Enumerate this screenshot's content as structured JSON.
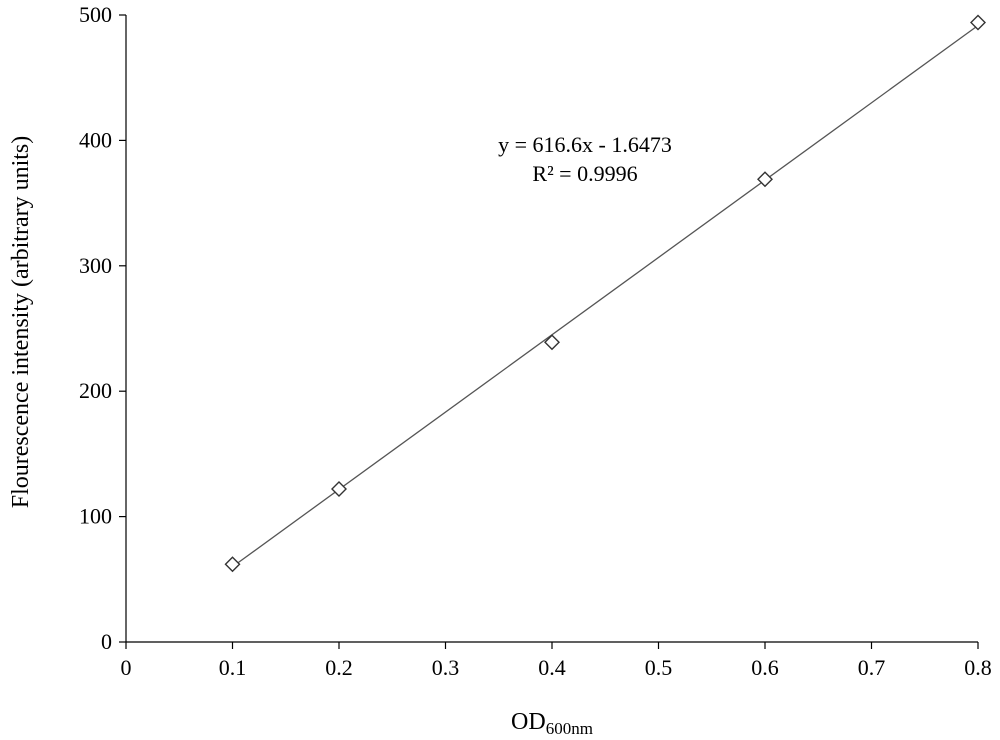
{
  "chart_data": {
    "type": "scatter",
    "xlabel_main": "OD",
    "xlabel_sub": "600nm",
    "ylabel": "Flourescence intensity (arbitrary units)",
    "xlim": [
      0,
      0.8
    ],
    "ylim": [
      0,
      500
    ],
    "x_ticks": [
      0,
      0.1,
      0.2,
      0.3,
      0.4,
      0.5,
      0.6,
      0.7,
      0.8
    ],
    "x_tick_labels": [
      "0",
      "0.1",
      "0.2",
      "0.3",
      "0.4",
      "0.5",
      "0.6",
      "0.7",
      "0.8"
    ],
    "y_ticks": [
      0,
      100,
      200,
      300,
      400,
      500
    ],
    "y_tick_labels": [
      "0",
      "100",
      "200",
      "300",
      "400",
      "500"
    ],
    "grid": false,
    "legend": "none",
    "marker": "open-diamond",
    "series": [
      {
        "x": [
          0.1,
          0.2,
          0.4,
          0.6,
          0.8
        ],
        "y": [
          62,
          122,
          239,
          369,
          494
        ]
      }
    ],
    "trendline": {
      "type": "linear",
      "slope": 616.6,
      "intercept": -1.6473,
      "x_range": [
        0.1,
        0.8
      ]
    },
    "annotations": {
      "equation": "y = 616.6x - 1.6473",
      "r_squared": "R² = 0.9996"
    },
    "colors": {
      "marker_stroke": "#333333",
      "trendline": "#555555",
      "axis": "#000000"
    }
  }
}
